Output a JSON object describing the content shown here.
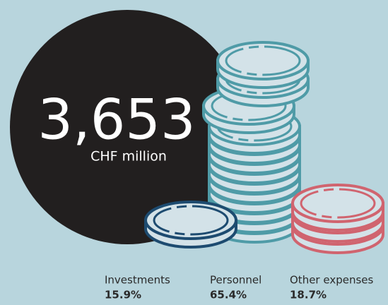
{
  "total": {
    "value": "3,653",
    "unit": "CHF million"
  },
  "items": [
    {
      "label": "Investments",
      "share": "15.9%"
    },
    {
      "label": "Personnel",
      "share": "65.4%"
    },
    {
      "label": "Other expenses",
      "share": "18.7%"
    }
  ]
}
